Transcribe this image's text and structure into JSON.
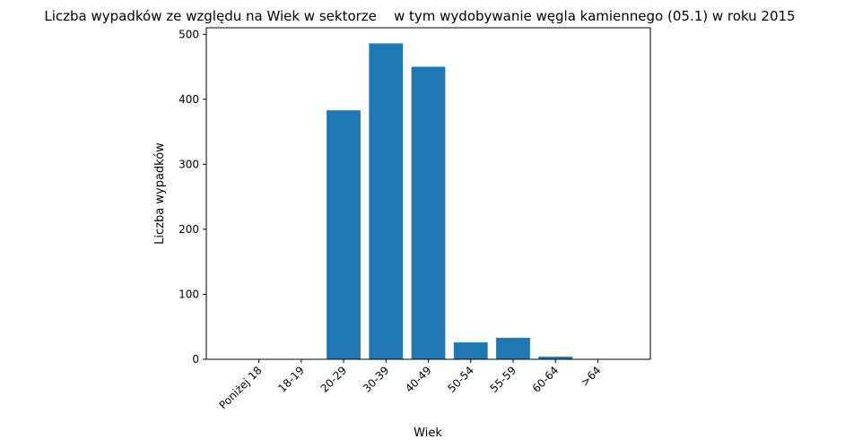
{
  "chart_data": {
    "type": "bar",
    "title": "Liczba wypadków ze względu na Wiek w sektorze    w tym wydobywanie węgla kamiennego (05.1) w roku 2015",
    "xlabel": "Wiek",
    "ylabel": "Liczba wypadków",
    "categories": [
      "Poniżej 18",
      "18-19",
      "20-29",
      "30-39",
      "40-49",
      "50-54",
      "55-59",
      "60-64",
      ">64"
    ],
    "values": [
      0,
      0,
      383,
      486,
      450,
      26,
      33,
      4,
      0
    ],
    "ylim": [
      0,
      510
    ],
    "yticks": [
      0,
      100,
      200,
      300,
      400,
      500
    ],
    "grid": false,
    "legend": "none",
    "bar_color": "#1f77b4"
  }
}
